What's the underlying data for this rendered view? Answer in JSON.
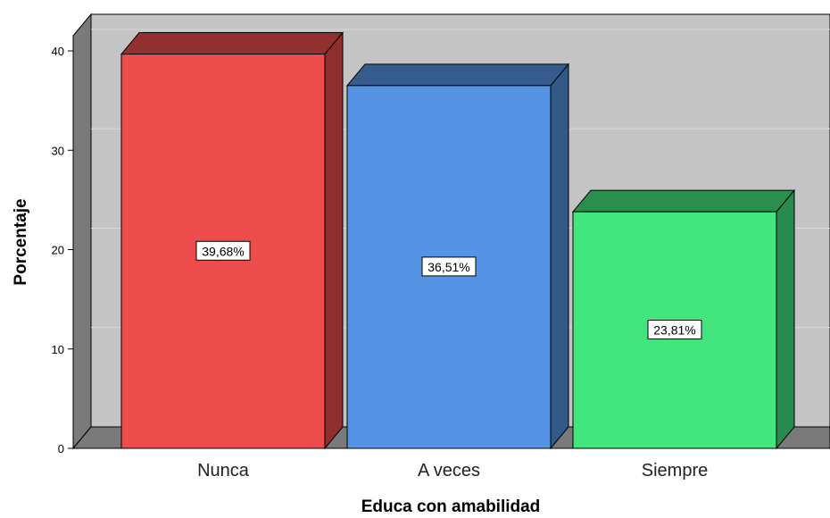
{
  "chart_data": {
    "type": "bar",
    "categories": [
      "Nunca",
      "A veces",
      "Siempre"
    ],
    "values": [
      39.68,
      36.51,
      23.81
    ],
    "data_labels": [
      "39,68%",
      "36,51%",
      "23,81%"
    ],
    "colors": [
      "#ec4c4c",
      "#5594e4",
      "#43e67e"
    ],
    "xlabel": "Educa con amabilidad",
    "ylabel": "Porcentaje",
    "ylim": [
      0,
      40
    ],
    "yticks": [
      0,
      10,
      20,
      30,
      40
    ],
    "grid": true,
    "style": "3d"
  }
}
